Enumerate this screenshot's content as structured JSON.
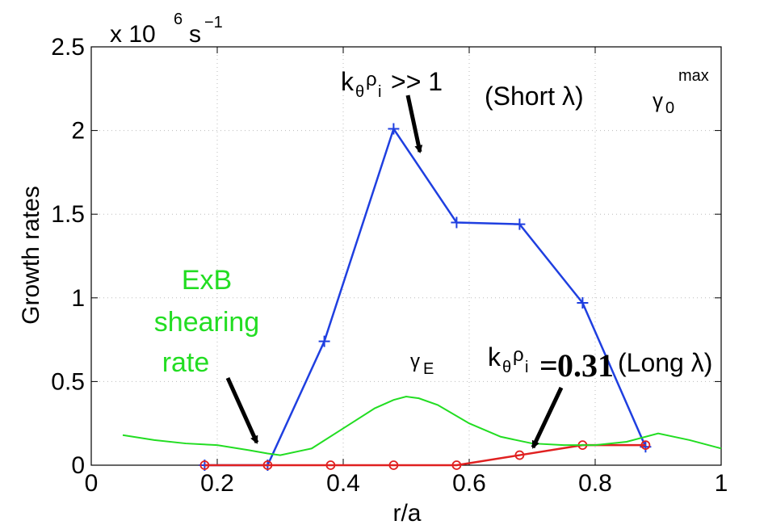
{
  "chart_data": {
    "type": "line",
    "ylabel": "Growth rates",
    "xlabel": "r/a",
    "xlim": [
      0,
      1
    ],
    "ylim": [
      0,
      2.5
    ],
    "xticks": [
      "0",
      "0.2",
      "0.4",
      "0.6",
      "0.8",
      "1"
    ],
    "yticks": [
      "0",
      "0.5",
      "1",
      "1.5",
      "2",
      "2.5"
    ],
    "scale_label": "x 10",
    "scale_exp": "6",
    "scale_unit": "s",
    "scale_unit_exp": "−1",
    "grid": "dotted",
    "colors": {
      "short": "#1f3fe0",
      "long": "#e02020",
      "exb": "#22dd22"
    },
    "series": [
      {
        "id": "short",
        "x": [
          0.18,
          0.28,
          0.37,
          0.48,
          0.58,
          0.68,
          0.78,
          0.88
        ],
        "y": [
          0.0,
          0.0,
          0.74,
          2.01,
          1.45,
          1.44,
          0.97,
          0.11
        ]
      },
      {
        "id": "long",
        "x": [
          0.18,
          0.28,
          0.38,
          0.48,
          0.58,
          0.68,
          0.78,
          0.88
        ],
        "y": [
          0.0,
          0.0,
          0.0,
          0.0,
          0.0,
          0.06,
          0.12,
          0.12
        ]
      },
      {
        "id": "exb",
        "x": [
          0.05,
          0.1,
          0.15,
          0.2,
          0.25,
          0.28,
          0.3,
          0.35,
          0.4,
          0.45,
          0.48,
          0.5,
          0.52,
          0.55,
          0.6,
          0.65,
          0.7,
          0.75,
          0.8,
          0.85,
          0.9,
          0.95,
          1.0
        ],
        "y": [
          0.18,
          0.15,
          0.13,
          0.12,
          0.09,
          0.07,
          0.06,
          0.1,
          0.22,
          0.34,
          0.39,
          0.41,
          0.4,
          0.36,
          0.25,
          0.17,
          0.13,
          0.12,
          0.12,
          0.14,
          0.19,
          0.15,
          0.1
        ]
      }
    ],
    "annotations": {
      "short_k": "k",
      "short_k_sub": "θ",
      "short_rho": "ρ",
      "short_rho_sub": "i",
      "short_rel": ">> 1",
      "short_lambda": "(Short λ)",
      "gamma0": "γ",
      "gamma0_sub": "0",
      "gamma0_sup": "max",
      "long_k": "k",
      "long_k_sub": "θ",
      "long_rho": "ρ",
      "long_rho_sub": "i",
      "long_eq": "=",
      "long_value": "0.31",
      "long_lambda": "(Long λ)",
      "gammaE": "γ",
      "gammaE_sub": "E",
      "exb_line1": "ExB",
      "exb_line2": "shearing",
      "exb_line3": "rate"
    }
  }
}
